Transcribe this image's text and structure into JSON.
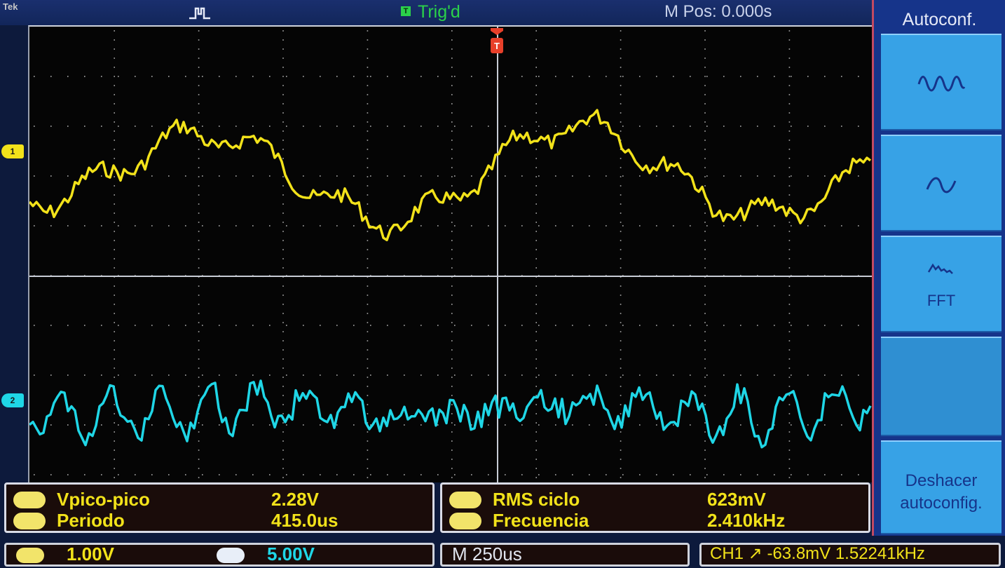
{
  "header": {
    "brand": "Tek",
    "trigger_badge": "T",
    "trigger_status": "Trig'd",
    "horizontal_position": "M Pos: 0.000s"
  },
  "channel_markers": {
    "ch1": "1",
    "ch2": "2"
  },
  "measurements": {
    "left": [
      {
        "label": "Vpico-pico",
        "value": "2.28V"
      },
      {
        "label": "Periodo",
        "value": "415.0us"
      }
    ],
    "right": [
      {
        "label": "RMS ciclo",
        "value": "623mV"
      },
      {
        "label": "Frecuencia",
        "value": "2.410kHz"
      }
    ]
  },
  "status_bar": {
    "ch1_scale": "1.00V",
    "ch2_scale": "5.00V",
    "time_scale": "M 250us",
    "trigger_readout": "CH1 ↗ -63.8mV   1.52241kHz"
  },
  "side_menu": {
    "title": "Autoconf.",
    "fft_label": "FFT",
    "undo_label": "Deshacer autoconfig."
  },
  "colors": {
    "ch1": "#f2e21a",
    "ch2": "#1fd6e6",
    "trigged": "#2bd14a",
    "menu_bg": "#16348a",
    "menu_button": "#37a2e6",
    "trigger_marker": "#e8402a"
  },
  "icons": {
    "trigger_type": "pulse-edge-icon",
    "cycle_button": "multi-cycle-wave-icon",
    "single_button": "single-cycle-wave-icon",
    "fft_button": "spectrum-icon"
  }
}
